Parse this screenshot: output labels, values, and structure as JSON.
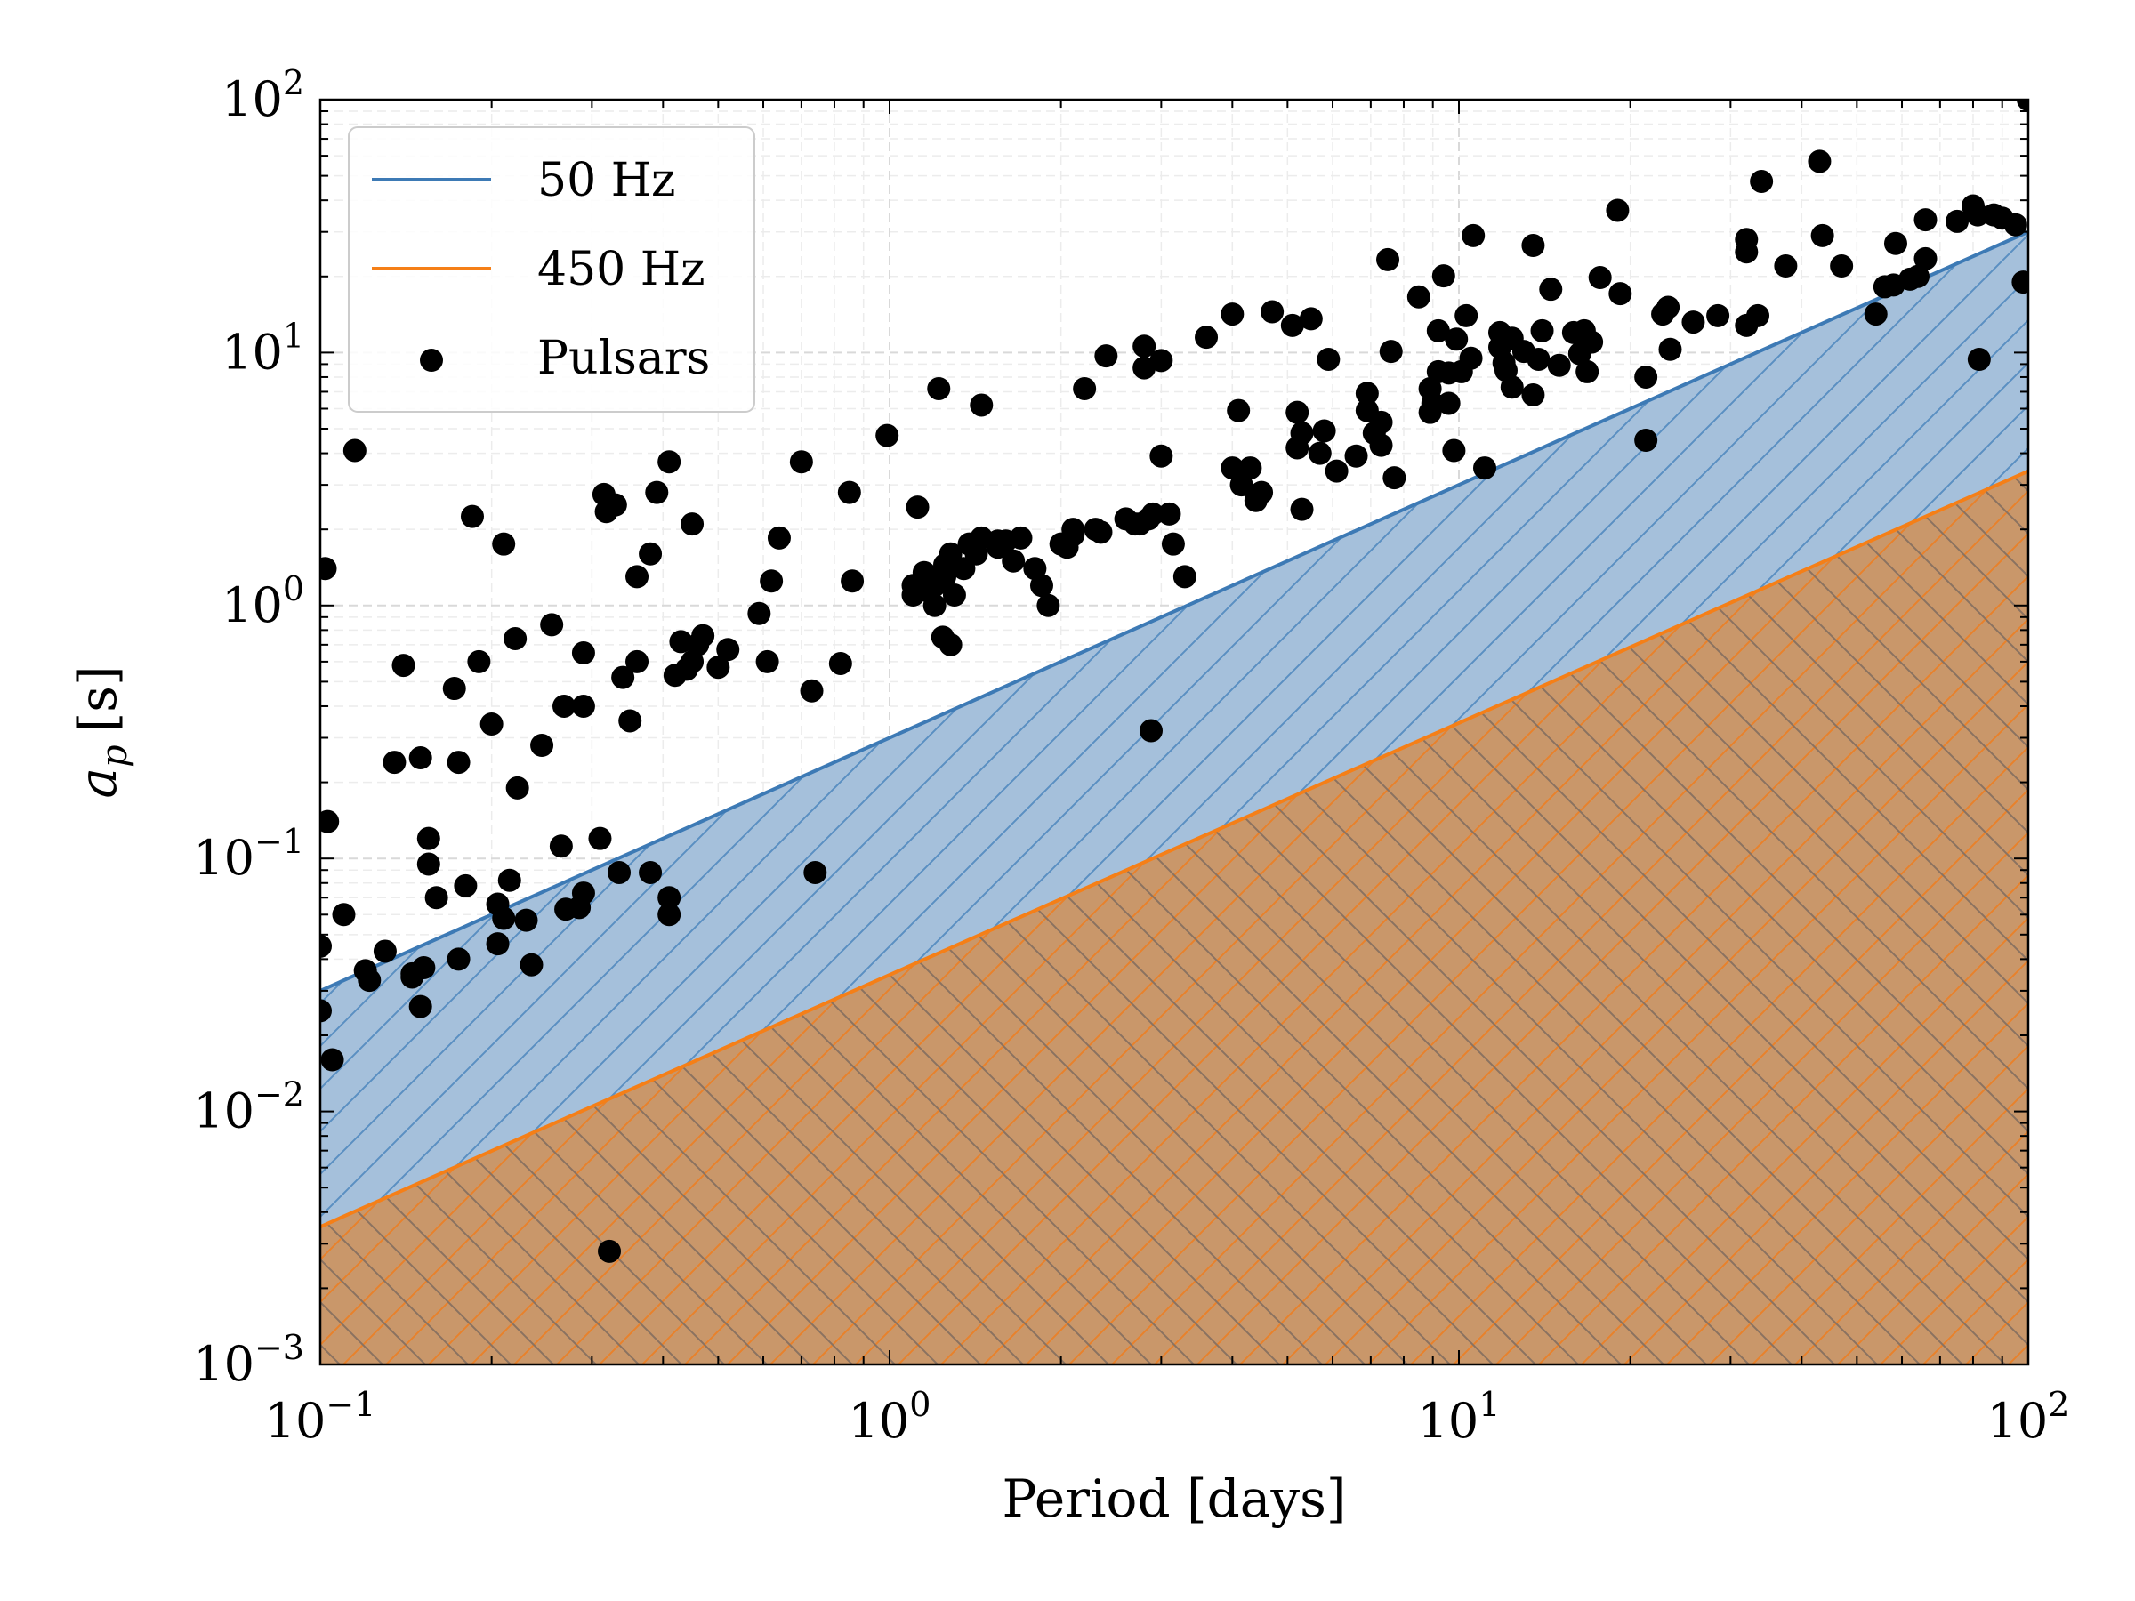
{
  "chart_data": {
    "type": "scatter",
    "title": "",
    "xlabel": "Period [days]",
    "ylabel_symbol": "a",
    "ylabel_subscript": "p",
    "ylabel_unit": "[s]",
    "xscale": "log",
    "yscale": "log",
    "xlim": [
      0.1,
      100
    ],
    "ylim": [
      0.001,
      100
    ],
    "grid": true,
    "legend_position": "upper-left",
    "x_ticks": [
      {
        "value": 0.1,
        "base": "10",
        "exp": "−1"
      },
      {
        "value": 1,
        "base": "10",
        "exp": "0"
      },
      {
        "value": 10,
        "base": "10",
        "exp": "1"
      },
      {
        "value": 100,
        "base": "10",
        "exp": "2"
      }
    ],
    "y_ticks": [
      {
        "value": 0.001,
        "base": "10",
        "exp": "−3"
      },
      {
        "value": 0.01,
        "base": "10",
        "exp": "−2"
      },
      {
        "value": 0.1,
        "base": "10",
        "exp": "−1"
      },
      {
        "value": 1,
        "base": "10",
        "exp": "0"
      },
      {
        "value": 10,
        "base": "10",
        "exp": "1"
      },
      {
        "value": 100,
        "base": "10",
        "exp": "2"
      }
    ],
    "curves": [
      {
        "name": "50 Hz",
        "color": "#3d7ab5",
        "fill": "#a5c0db",
        "hatch": "/",
        "points": [
          [
            0.1,
            0.03
          ],
          [
            100,
            30
          ]
        ]
      },
      {
        "name": "450 Hz",
        "color": "#f57f17",
        "fill": "#c9976a",
        "hatch": "x",
        "points": [
          [
            0.1,
            0.0035
          ],
          [
            100,
            3.4
          ]
        ]
      }
    ],
    "scatter_series": {
      "name": "Pulsars",
      "color": "#000000",
      "points": [
        [
          0.1,
          0.045
        ],
        [
          0.1,
          0.025
        ],
        [
          0.102,
          1.4
        ],
        [
          0.103,
          0.14
        ],
        [
          0.105,
          0.016
        ],
        [
          0.11,
          0.06
        ],
        [
          0.115,
          4.1
        ],
        [
          0.12,
          0.036
        ],
        [
          0.122,
          0.033
        ],
        [
          0.13,
          0.043
        ],
        [
          0.135,
          0.24
        ],
        [
          0.14,
          0.58
        ],
        [
          0.145,
          0.035
        ],
        [
          0.145,
          0.034
        ],
        [
          0.15,
          0.25
        ],
        [
          0.152,
          0.037
        ],
        [
          0.15,
          0.026
        ],
        [
          0.155,
          0.12
        ],
        [
          0.155,
          0.095
        ],
        [
          0.16,
          0.07
        ],
        [
          0.172,
          0.47
        ],
        [
          0.175,
          0.04
        ],
        [
          0.175,
          0.24
        ],
        [
          0.18,
          0.078
        ],
        [
          0.185,
          2.25
        ],
        [
          0.19,
          0.6
        ],
        [
          0.2,
          0.34
        ],
        [
          0.205,
          0.046
        ],
        [
          0.205,
          0.066
        ],
        [
          0.21,
          1.75
        ],
        [
          0.21,
          0.058
        ],
        [
          0.215,
          0.082
        ],
        [
          0.22,
          0.74
        ],
        [
          0.222,
          0.19
        ],
        [
          0.23,
          0.057
        ],
        [
          0.235,
          0.038
        ],
        [
          0.245,
          0.28
        ],
        [
          0.255,
          0.84
        ],
        [
          0.265,
          0.112
        ],
        [
          0.268,
          0.4
        ],
        [
          0.27,
          0.063
        ],
        [
          0.29,
          0.4
        ],
        [
          0.29,
          0.65
        ],
        [
          0.29,
          0.073
        ],
        [
          0.285,
          0.064
        ],
        [
          0.31,
          0.12
        ],
        [
          0.315,
          2.75
        ],
        [
          0.318,
          2.35
        ],
        [
          0.33,
          2.5
        ],
        [
          0.322,
          0.0028
        ],
        [
          0.335,
          0.088
        ],
        [
          0.34,
          0.52
        ],
        [
          0.35,
          0.35
        ],
        [
          0.36,
          0.6
        ],
        [
          0.36,
          1.3
        ],
        [
          0.38,
          1.6
        ],
        [
          0.38,
          0.088
        ],
        [
          0.39,
          2.8
        ],
        [
          0.41,
          3.7
        ],
        [
          0.41,
          0.07
        ],
        [
          0.41,
          0.06
        ],
        [
          0.42,
          0.53
        ],
        [
          0.43,
          0.72
        ],
        [
          0.44,
          0.56
        ],
        [
          0.45,
          0.6
        ],
        [
          0.45,
          2.1
        ],
        [
          0.46,
          0.7
        ],
        [
          0.47,
          0.76
        ],
        [
          0.5,
          0.57
        ],
        [
          0.52,
          0.67
        ],
        [
          0.59,
          0.93
        ],
        [
          0.61,
          0.6
        ],
        [
          0.62,
          1.25
        ],
        [
          0.64,
          1.85
        ],
        [
          0.7,
          3.7
        ],
        [
          0.73,
          0.46
        ],
        [
          0.74,
          0.088
        ],
        [
          0.82,
          0.59
        ],
        [
          0.85,
          2.8
        ],
        [
          0.86,
          1.25
        ],
        [
          0.99,
          4.7
        ],
        [
          1.1,
          1.1
        ],
        [
          1.1,
          1.2
        ],
        [
          1.12,
          2.45
        ],
        [
          1.15,
          1.15
        ],
        [
          1.15,
          1.35
        ],
        [
          1.2,
          1.0
        ],
        [
          1.2,
          1.2
        ],
        [
          1.22,
          7.2
        ],
        [
          1.24,
          0.75
        ],
        [
          1.25,
          1.45
        ],
        [
          1.25,
          1.3
        ],
        [
          1.28,
          0.7
        ],
        [
          1.28,
          1.6
        ],
        [
          1.3,
          1.1
        ],
        [
          1.35,
          1.4
        ],
        [
          1.38,
          1.75
        ],
        [
          1.42,
          1.6
        ],
        [
          1.45,
          1.85
        ],
        [
          1.45,
          6.2
        ],
        [
          1.55,
          1.8
        ],
        [
          1.55,
          1.7
        ],
        [
          1.6,
          1.8
        ],
        [
          1.65,
          1.5
        ],
        [
          1.7,
          1.85
        ],
        [
          1.8,
          1.4
        ],
        [
          1.85,
          1.2
        ],
        [
          1.9,
          1.0
        ],
        [
          2.0,
          1.75
        ],
        [
          2.05,
          1.7
        ],
        [
          2.1,
          2.0
        ],
        [
          2.1,
          1.9
        ],
        [
          2.2,
          7.2
        ],
        [
          2.3,
          2.0
        ],
        [
          2.35,
          1.95
        ],
        [
          2.4,
          9.7
        ],
        [
          2.6,
          2.2
        ],
        [
          2.7,
          2.1
        ],
        [
          2.75,
          2.1
        ],
        [
          2.8,
          10.6
        ],
        [
          2.8,
          8.7
        ],
        [
          2.85,
          2.2
        ],
        [
          2.88,
          0.32
        ],
        [
          2.9,
          2.3
        ],
        [
          3.0,
          9.3
        ],
        [
          3.0,
          3.9
        ],
        [
          3.1,
          2.3
        ],
        [
          3.15,
          1.75
        ],
        [
          3.3,
          1.3
        ],
        [
          3.6,
          11.5
        ],
        [
          4.0,
          14.2
        ],
        [
          4.0,
          3.5
        ],
        [
          4.1,
          5.9
        ],
        [
          4.15,
          3.0
        ],
        [
          4.3,
          3.5
        ],
        [
          4.4,
          2.6
        ],
        [
          4.5,
          2.8
        ],
        [
          4.7,
          14.5
        ],
        [
          5.1,
          12.8
        ],
        [
          5.2,
          5.8
        ],
        [
          5.2,
          4.2
        ],
        [
          5.3,
          4.8
        ],
        [
          5.3,
          2.4
        ],
        [
          5.5,
          13.6
        ],
        [
          5.7,
          4.0
        ],
        [
          5.8,
          4.9
        ],
        [
          5.9,
          9.4
        ],
        [
          6.1,
          3.4
        ],
        [
          6.6,
          3.9
        ],
        [
          6.9,
          6.9
        ],
        [
          6.9,
          5.9
        ],
        [
          7.1,
          4.8
        ],
        [
          7.3,
          5.3
        ],
        [
          7.3,
          4.3
        ],
        [
          7.5,
          23.3
        ],
        [
          7.6,
          10.1
        ],
        [
          7.7,
          3.2
        ],
        [
          8.5,
          16.6
        ],
        [
          8.9,
          5.8
        ],
        [
          8.9,
          7.2
        ],
        [
          9.0,
          6.3
        ],
        [
          9.2,
          8.4
        ],
        [
          9.2,
          12.2
        ],
        [
          9.4,
          20.1
        ],
        [
          9.6,
          8.3
        ],
        [
          9.6,
          6.3
        ],
        [
          9.8,
          4.1
        ],
        [
          9.9,
          11.3
        ],
        [
          10.1,
          8.4
        ],
        [
          10.3,
          14.0
        ],
        [
          10.5,
          9.5
        ],
        [
          10.6,
          29.0
        ],
        [
          11.1,
          3.5
        ],
        [
          11.8,
          12.0
        ],
        [
          11.8,
          10.5
        ],
        [
          12.0,
          9.1
        ],
        [
          12.1,
          8.5
        ],
        [
          12.4,
          7.3
        ],
        [
          12.4,
          11.4
        ],
        [
          13.0,
          10.1
        ],
        [
          13.5,
          26.5
        ],
        [
          13.5,
          6.8
        ],
        [
          13.8,
          9.4
        ],
        [
          14.0,
          12.2
        ],
        [
          14.5,
          17.8
        ],
        [
          15.0,
          8.9
        ],
        [
          15.9,
          12.0
        ],
        [
          16.3,
          9.9
        ],
        [
          16.6,
          12.2
        ],
        [
          16.8,
          8.4
        ],
        [
          17.1,
          11.0
        ],
        [
          17.7,
          19.8
        ],
        [
          19.0,
          36.5
        ],
        [
          19.2,
          17.1
        ],
        [
          21.3,
          8.0
        ],
        [
          21.3,
          4.5
        ],
        [
          22.8,
          14.2
        ],
        [
          23.3,
          15.1
        ],
        [
          23.5,
          10.3
        ],
        [
          25.8,
          13.2
        ],
        [
          28.5,
          14.0
        ],
        [
          32.0,
          28.0
        ],
        [
          32.0,
          25.0
        ],
        [
          32.0,
          12.8
        ],
        [
          33.5,
          14.0
        ],
        [
          34.0,
          47.5
        ],
        [
          37.5,
          22.0
        ],
        [
          43.0,
          57.0
        ],
        [
          43.5,
          29.0
        ],
        [
          47.0,
          22.0
        ],
        [
          54.0,
          14.2
        ],
        [
          56.0,
          18.2
        ],
        [
          58.0,
          18.5
        ],
        [
          58.5,
          27.0
        ],
        [
          62.0,
          19.5
        ],
        [
          64.0,
          20.0
        ],
        [
          66.0,
          33.5
        ],
        [
          66.0,
          23.5
        ],
        [
          75.0,
          33.0
        ],
        [
          80.0,
          38.0
        ],
        [
          81.5,
          35.0
        ],
        [
          82.0,
          9.4
        ],
        [
          87.0,
          35.0
        ],
        [
          90.0,
          34.0
        ],
        [
          95.0,
          32.0
        ],
        [
          98.0,
          19.0
        ],
        [
          100.0,
          100.0
        ]
      ]
    }
  }
}
